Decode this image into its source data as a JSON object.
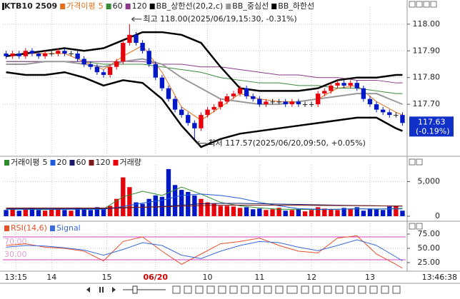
{
  "chart_data": [
    {
      "type": "candlestick",
      "title": "KTB10 2509",
      "ma_label": "가격이평",
      "open": [
        117.89,
        117.88,
        117.89,
        117.88,
        117.9,
        117.89,
        117.88,
        117.89,
        117.89,
        117.9,
        117.89,
        117.89,
        117.87,
        117.85,
        117.84,
        117.82,
        117.81,
        117.84,
        117.86,
        117.93,
        117.96,
        117.93,
        117.9,
        117.85,
        117.8,
        117.76,
        117.72,
        117.68,
        117.66,
        117.63,
        117.61,
        117.66,
        117.68,
        117.69,
        117.71,
        117.73,
        117.74,
        117.76,
        117.73,
        117.72,
        117.7,
        117.71,
        117.71,
        117.71,
        117.7,
        117.71,
        117.7,
        117.7,
        117.7,
        117.74,
        117.75,
        117.77,
        117.78,
        117.77,
        117.78,
        117.76,
        117.72,
        117.7,
        117.68,
        117.67,
        117.66,
        117.66
      ],
      "high": [
        117.9,
        117.9,
        117.9,
        117.91,
        117.91,
        117.9,
        117.9,
        117.9,
        117.91,
        117.91,
        117.9,
        117.9,
        117.88,
        117.86,
        117.85,
        117.83,
        117.85,
        117.87,
        117.94,
        118.0,
        117.97,
        117.94,
        117.91,
        117.86,
        117.81,
        117.77,
        117.73,
        117.69,
        117.67,
        117.64,
        117.67,
        117.69,
        117.7,
        117.72,
        117.74,
        117.75,
        117.77,
        117.77,
        117.74,
        117.73,
        117.72,
        117.72,
        117.72,
        117.72,
        117.72,
        117.72,
        117.71,
        117.71,
        117.75,
        117.76,
        117.78,
        117.79,
        117.79,
        117.79,
        117.79,
        117.77,
        117.73,
        117.71,
        117.69,
        117.68,
        117.67,
        117.67
      ],
      "low": [
        117.87,
        117.87,
        117.87,
        117.87,
        117.88,
        117.87,
        117.87,
        117.88,
        117.88,
        117.88,
        117.88,
        117.86,
        117.84,
        117.83,
        117.81,
        117.8,
        117.8,
        117.83,
        117.85,
        117.92,
        117.92,
        117.89,
        117.84,
        117.79,
        117.75,
        117.71,
        117.67,
        117.65,
        117.62,
        117.57,
        117.6,
        117.65,
        117.67,
        117.68,
        117.7,
        117.72,
        117.73,
        117.72,
        117.71,
        117.69,
        117.69,
        117.7,
        117.7,
        117.69,
        117.69,
        117.69,
        117.69,
        117.69,
        117.69,
        117.73,
        117.74,
        117.76,
        117.76,
        117.76,
        117.75,
        117.71,
        117.69,
        117.67,
        117.66,
        117.65,
        117.65,
        117.62
      ],
      "close": [
        117.88,
        117.89,
        117.88,
        117.9,
        117.89,
        117.88,
        117.89,
        117.89,
        117.9,
        117.89,
        117.89,
        117.87,
        117.85,
        117.84,
        117.82,
        117.81,
        117.84,
        117.86,
        117.93,
        117.96,
        117.93,
        117.9,
        117.85,
        117.8,
        117.76,
        117.72,
        117.68,
        117.66,
        117.63,
        117.61,
        117.66,
        117.68,
        117.69,
        117.71,
        117.73,
        117.74,
        117.76,
        117.73,
        117.72,
        117.7,
        117.71,
        117.71,
        117.71,
        117.7,
        117.71,
        117.7,
        117.7,
        117.7,
        117.74,
        117.75,
        117.77,
        117.78,
        117.77,
        117.78,
        117.76,
        117.72,
        117.7,
        117.68,
        117.67,
        117.66,
        117.66,
        117.63
      ],
      "up_color": "#e8000b",
      "down_color": "#0018c8",
      "lines": [
        {
          "name": "5",
          "color": "#e0701a",
          "width": 1,
          "x": [
            0,
            3,
            6,
            9,
            12,
            15,
            18,
            21,
            24,
            27,
            30,
            33,
            36,
            39,
            42,
            45,
            48,
            51,
            54,
            57,
            60,
            61
          ],
          "values": [
            117.88,
            117.89,
            117.89,
            117.89,
            117.86,
            117.83,
            117.88,
            117.92,
            117.82,
            117.69,
            117.64,
            117.69,
            117.74,
            117.72,
            117.71,
            117.71,
            117.72,
            117.76,
            117.77,
            117.71,
            117.67,
            117.66
          ]
        },
        {
          "name": "60",
          "color": "#3a8a3a",
          "width": 1,
          "x": [
            0,
            3,
            6,
            9,
            12,
            15,
            18,
            21,
            24,
            27,
            30,
            33,
            36,
            39,
            42,
            45,
            48,
            51,
            54,
            57,
            60,
            61
          ],
          "values": [
            117.86,
            117.86,
            117.86,
            117.86,
            117.86,
            117.85,
            117.85,
            117.85,
            117.84,
            117.83,
            117.82,
            117.8,
            117.79,
            117.78,
            117.78,
            117.77,
            117.77,
            117.76,
            117.76,
            117.75,
            117.74,
            117.74
          ]
        },
        {
          "name": "120",
          "color": "#8b3a8b",
          "width": 1,
          "x": [
            0,
            3,
            6,
            9,
            12,
            15,
            18,
            21,
            24,
            27,
            30,
            33,
            36,
            39,
            42,
            45,
            48,
            51,
            54,
            57,
            60,
            61
          ],
          "values": [
            117.86,
            117.86,
            117.86,
            117.86,
            117.86,
            117.86,
            117.86,
            117.86,
            117.85,
            117.85,
            117.84,
            117.84,
            117.83,
            117.82,
            117.81,
            117.81,
            117.8,
            117.8,
            117.79,
            117.79,
            117.78,
            117.78
          ]
        },
        {
          "name": "BB_상한선(20,2,c)",
          "color": "#000000",
          "width": 2.5,
          "x": [
            0,
            3,
            6,
            9,
            12,
            15,
            18,
            21,
            24,
            27,
            30,
            33,
            36,
            39,
            42,
            45,
            48,
            51,
            54,
            57,
            60,
            61
          ],
          "values": [
            117.88,
            117.89,
            117.9,
            117.91,
            117.9,
            117.91,
            117.94,
            117.97,
            117.97,
            117.96,
            117.93,
            117.84,
            117.76,
            117.75,
            117.75,
            117.75,
            117.76,
            117.79,
            117.8,
            117.8,
            117.81,
            117.81
          ]
        },
        {
          "name": "BB_중심선",
          "color": "#999999",
          "width": 2,
          "x": [
            0,
            3,
            6,
            9,
            12,
            15,
            18,
            21,
            24,
            27,
            30,
            33,
            36,
            39,
            42,
            45,
            48,
            51,
            54,
            57,
            60,
            61
          ],
          "values": [
            117.85,
            117.85,
            117.86,
            117.86,
            117.85,
            117.84,
            117.86,
            117.87,
            117.85,
            117.8,
            117.76,
            117.72,
            117.71,
            117.7,
            117.7,
            117.71,
            117.72,
            117.73,
            117.74,
            117.74,
            117.71,
            117.7
          ]
        },
        {
          "name": "BB_하한선",
          "color": "#000000",
          "width": 2.5,
          "x": [
            0,
            3,
            6,
            9,
            12,
            15,
            18,
            21,
            24,
            27,
            30,
            33,
            36,
            39,
            42,
            45,
            48,
            51,
            54,
            57,
            60,
            61
          ],
          "values": [
            117.82,
            117.81,
            117.81,
            117.82,
            117.8,
            117.77,
            117.79,
            117.78,
            117.72,
            117.62,
            117.54,
            117.57,
            117.59,
            117.6,
            117.61,
            117.62,
            117.63,
            117.64,
            117.65,
            117.65,
            117.61,
            117.6
          ]
        }
      ],
      "ylim": [
        117.516,
        118.053
      ],
      "yticks": [
        {
          "value": 117.7,
          "label": "117.70"
        },
        {
          "value": 117.8,
          "label": "117.80"
        },
        {
          "value": 117.9,
          "label": "117.90"
        },
        {
          "value": 118.0,
          "label": "118.00"
        }
      ],
      "xticks": [
        {
          "value": 1.5,
          "label": "13:15"
        },
        {
          "value": 7,
          "label": "14"
        },
        {
          "value": 15.5,
          "label": "15"
        },
        {
          "value": 23,
          "label": "06/20"
        },
        {
          "value": 31,
          "label": "10"
        },
        {
          "value": 39,
          "label": "11"
        },
        {
          "value": 47,
          "label": "12"
        },
        {
          "value": 56,
          "label": "13"
        }
      ],
      "highlight_xtick": 3,
      "annotations": [
        "최고 118.00(2025/06/19,15:30, -0.31%)",
        "최저 117.57(2025/06/20,09:50, +0.05%)"
      ],
      "last_change": "(-0.19%)",
      "clock": "13:46:38",
      "grid": true
    },
    {
      "type": "bar",
      "name": "거래량",
      "ma_label": "거래이평",
      "values": [
        900,
        1100,
        800,
        1000,
        1200,
        900,
        800,
        1000,
        1100,
        900,
        800,
        1200,
        1000,
        900,
        1300,
        1000,
        1500,
        2500,
        5600,
        4200,
        2000,
        1800,
        2500,
        3000,
        2800,
        6800,
        4500,
        3800,
        3500,
        3000,
        2500,
        2000,
        1800,
        1500,
        1500,
        1400,
        1200,
        1300,
        1000,
        1100,
        900,
        1000,
        1200,
        800,
        900,
        1000,
        700,
        900,
        1300,
        1100,
        1000,
        900,
        1200,
        1000,
        1300,
        800,
        1100,
        1000,
        900,
        1400,
        1500,
        800
      ],
      "lines": [
        {
          "name": "5",
          "color": "#2e8b2e",
          "width": 1,
          "x": [
            0,
            3,
            6,
            9,
            12,
            15,
            18,
            21,
            24,
            27,
            30,
            33,
            36,
            39,
            42,
            45,
            48,
            51,
            54,
            57,
            60,
            61
          ],
          "values": [
            1000,
            1000,
            950,
            1000,
            1000,
            1050,
            2800,
            3600,
            3000,
            4200,
            3200,
            2000,
            1500,
            1200,
            1000,
            1000,
            950,
            1000,
            1100,
            1000,
            1100,
            1150
          ]
        },
        {
          "name": "20",
          "color": "#1e5adc",
          "width": 1,
          "x": [
            0,
            3,
            6,
            9,
            12,
            15,
            18,
            21,
            24,
            27,
            30,
            33,
            36,
            39,
            42,
            45,
            48,
            51,
            54,
            57,
            60,
            61
          ],
          "values": [
            1000,
            1000,
            1000,
            1000,
            1000,
            1000,
            1400,
            1900,
            2300,
            3000,
            3200,
            3000,
            2600,
            2000,
            1500,
            1100,
            1000,
            1000,
            1050,
            1050,
            1050,
            1050
          ]
        },
        {
          "name": "60",
          "color": "#1a1a6a",
          "width": 1,
          "x": [
            0,
            3,
            6,
            9,
            12,
            15,
            18,
            21,
            24,
            27,
            30,
            33,
            36,
            39,
            42,
            45,
            48,
            51,
            54,
            57,
            60,
            61
          ],
          "values": [
            1100,
            1100,
            1100,
            1100,
            1100,
            1100,
            1200,
            1300,
            1400,
            1600,
            1800,
            1850,
            1850,
            1800,
            1750,
            1700,
            1650,
            1600,
            1550,
            1500,
            1450,
            1450
          ]
        },
        {
          "name": "120",
          "color": "#7a1a1a",
          "width": 1,
          "x": [
            0,
            3,
            6,
            9,
            12,
            15,
            18,
            21,
            24,
            27,
            30,
            33,
            36,
            39,
            42,
            45,
            48,
            51,
            54,
            57,
            60,
            61
          ],
          "values": [
            1200,
            1200,
            1200,
            1200,
            1200,
            1200,
            1250,
            1300,
            1350,
            1450,
            1550,
            1600,
            1600,
            1600,
            1600,
            1580,
            1560,
            1540,
            1520,
            1500,
            1480,
            1480
          ]
        }
      ],
      "ylim": [
        0,
        7000
      ],
      "yticks": [
        0,
        {
          "value": 5000,
          "label": "5,000"
        }
      ]
    },
    {
      "type": "line",
      "series": [
        {
          "name": "RSI(14,6)",
          "color": "#e8502a",
          "x": [
            0,
            3,
            6,
            9,
            12,
            15,
            18,
            21,
            24,
            27,
            30,
            33,
            36,
            39,
            42,
            45,
            48,
            51,
            54,
            57,
            60,
            61
          ],
          "values": [
            55,
            58,
            52,
            50,
            45,
            28,
            62,
            70,
            45,
            22,
            40,
            58,
            62,
            68,
            55,
            45,
            42,
            68,
            72,
            40,
            22,
            15
          ]
        },
        {
          "name": "Signal",
          "color": "#3a6ad8",
          "x": [
            0,
            3,
            6,
            9,
            12,
            15,
            18,
            21,
            24,
            27,
            30,
            33,
            36,
            39,
            42,
            45,
            48,
            51,
            54,
            57,
            60,
            61
          ],
          "values": [
            52,
            55,
            54,
            51,
            47,
            38,
            48,
            60,
            55,
            38,
            32,
            45,
            55,
            62,
            60,
            52,
            46,
            55,
            65,
            55,
            35,
            28
          ]
        }
      ],
      "reference_lines": [
        {
          "value": 70,
          "label": "70.00"
        },
        {
          "value": 30,
          "label": "30.00"
        }
      ],
      "reference_color": "#d040c0",
      "ylim": [
        12.5,
        92.5
      ],
      "yticks": [
        {
          "value": 25,
          "label": "25.00"
        },
        {
          "value": 50,
          "label": "50.00"
        },
        {
          "value": 75,
          "label": "75.00"
        }
      ]
    }
  ]
}
